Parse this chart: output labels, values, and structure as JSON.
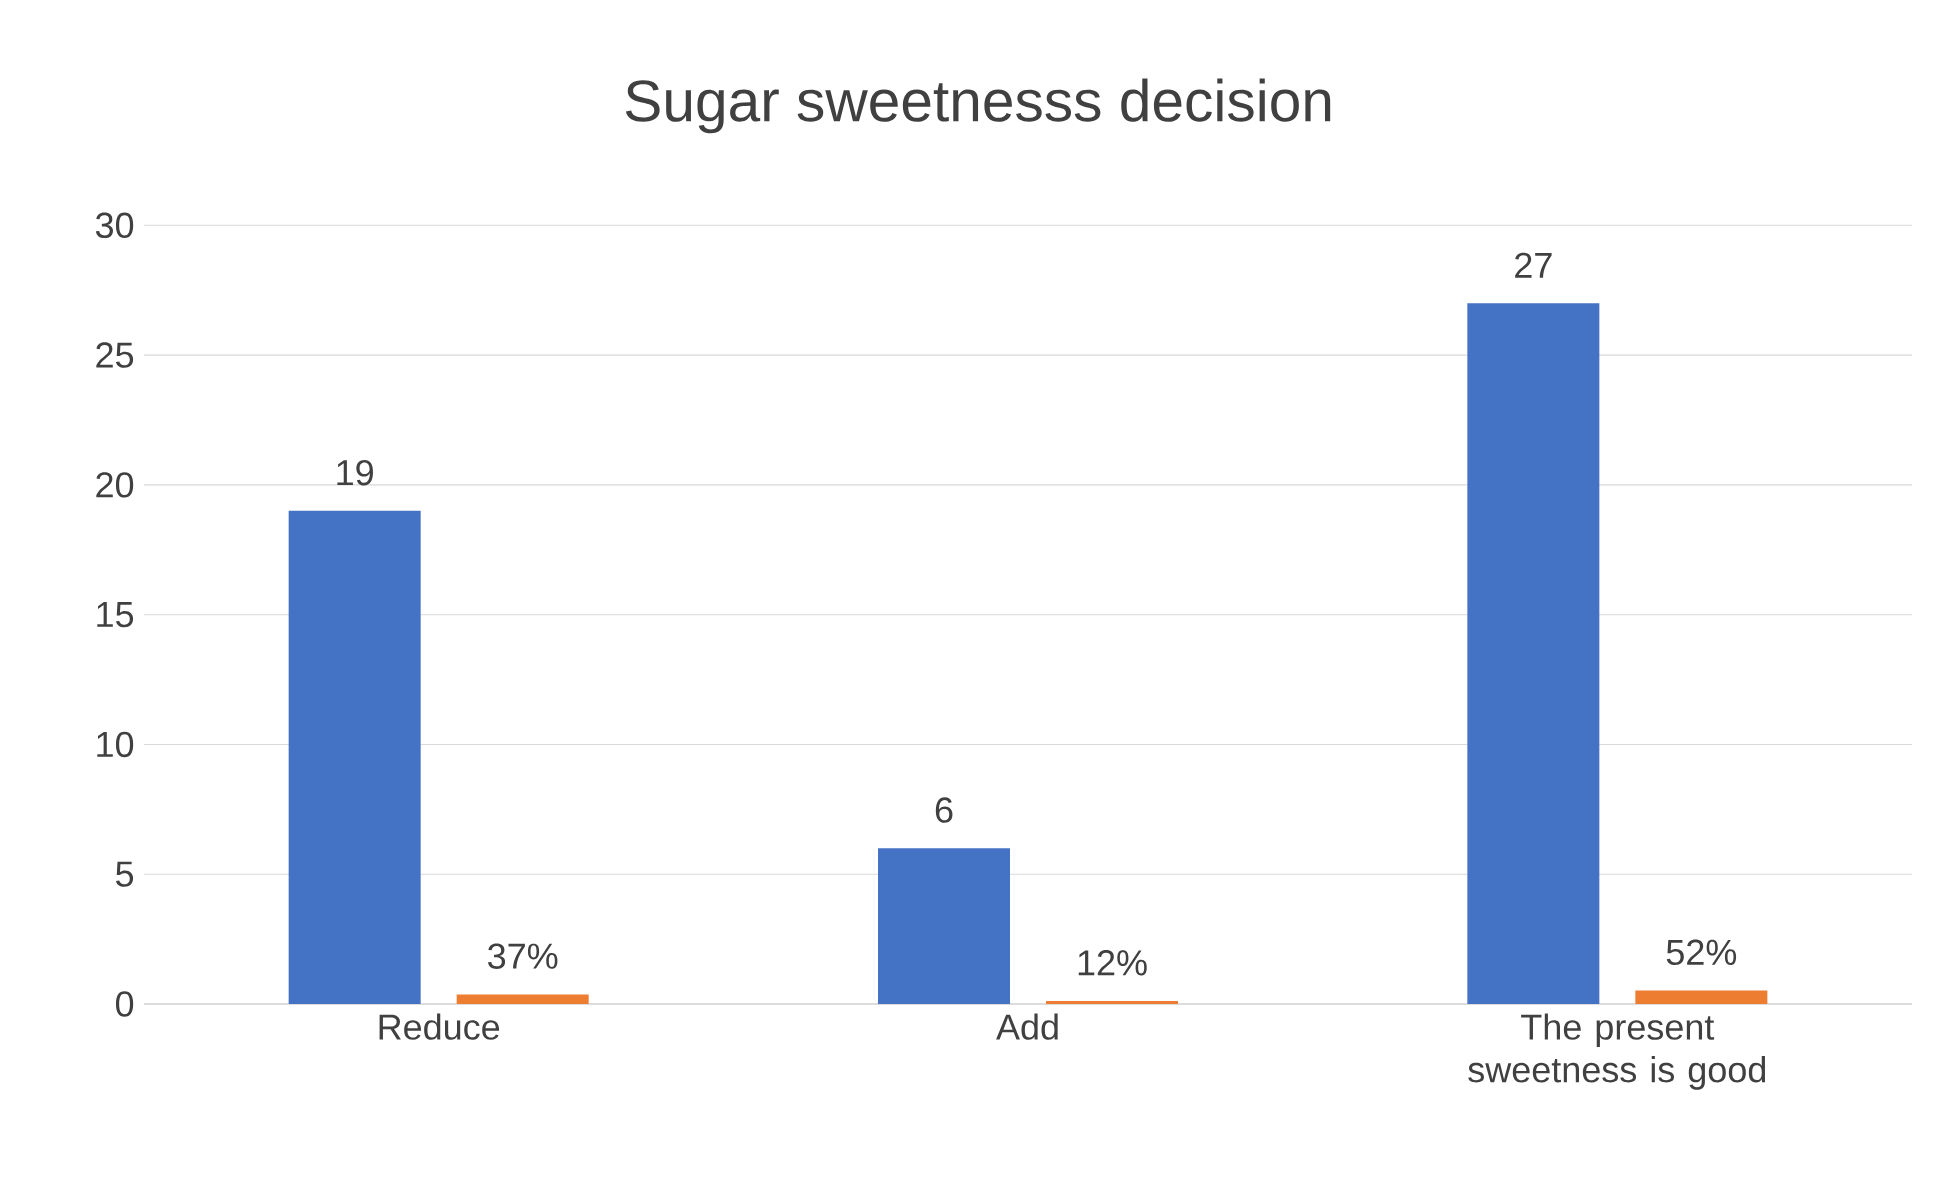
{
  "chart_data": {
    "type": "bar",
    "title": "Sugar sweetnesss decision",
    "categories": [
      "Reduce",
      "Add",
      "The present sweetness is good"
    ],
    "series": [
      {
        "color": "#4472c4",
        "values": [
          19,
          6,
          27
        ],
        "data_labels": true
      },
      {
        "color": "#ed7d31",
        "values": [
          0.37,
          0.12,
          0.52
        ],
        "value_labels": [
          "37%",
          "12%",
          "52%"
        ]
      }
    ],
    "ylim": [
      0,
      30
    ],
    "yticks": [
      0,
      5,
      10,
      15,
      20,
      25,
      30
    ],
    "grid": "y"
  }
}
